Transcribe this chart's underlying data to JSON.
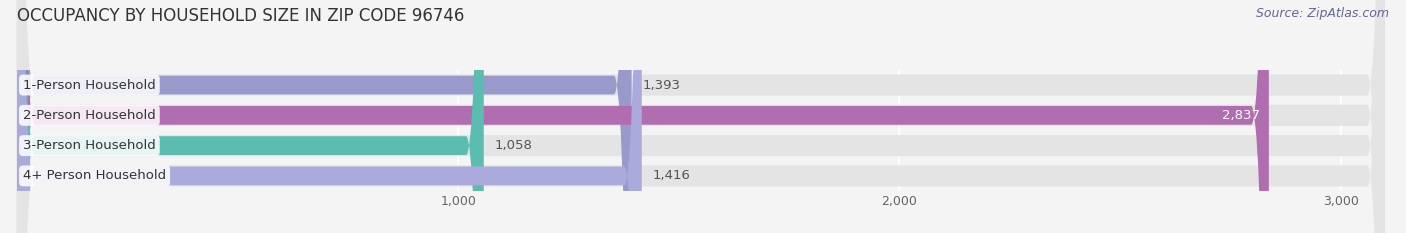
{
  "title": "OCCUPANCY BY HOUSEHOLD SIZE IN ZIP CODE 96746",
  "source": "Source: ZipAtlas.com",
  "categories": [
    "1-Person Household",
    "2-Person Household",
    "3-Person Household",
    "4+ Person Household"
  ],
  "values": [
    1393,
    2837,
    1058,
    1416
  ],
  "bar_colors": [
    "#9999cc",
    "#b06db0",
    "#5bbcb0",
    "#aaaadd"
  ],
  "value_labels": [
    "1,393",
    "2,837",
    "1,058",
    "1,416"
  ],
  "value_label_inside": [
    false,
    true,
    false,
    false
  ],
  "xlim": [
    0,
    3100
  ],
  "xticks": [
    1000,
    2000,
    3000
  ],
  "xtick_labels": [
    "1,000",
    "2,000",
    "3,000"
  ],
  "background_color": "#f4f4f4",
  "bar_background_color": "#e4e4e4",
  "title_fontsize": 12,
  "source_fontsize": 9,
  "label_fontsize": 9.5,
  "value_fontsize": 9.5,
  "bar_height": 0.62
}
